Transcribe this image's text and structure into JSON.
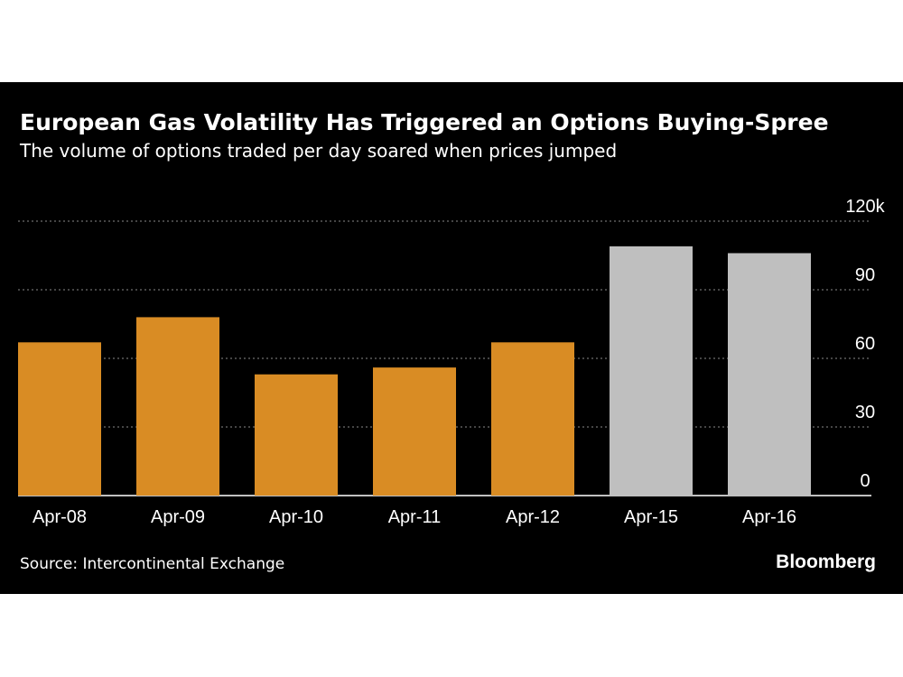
{
  "title": "European Gas Volatility Has Triggered an Options Buying-Spree",
  "subtitle": "The volume of options traded per day soared when prices jumped",
  "source": "Source: Intercontinental Exchange",
  "brand": "Bloomberg",
  "colors": {
    "background": "#000000",
    "highlight": "#d98c24",
    "muted": "#bfbfbf",
    "gridline": "#8a8a8a",
    "text": "#ffffff"
  },
  "chart_data": {
    "type": "bar",
    "title": "European Gas Volatility Has Triggered an Options Buying-Spree",
    "subtitle": "The volume of options traded per day soared when prices jumped",
    "categories": [
      "Apr-08",
      "Apr-09",
      "Apr-10",
      "Apr-11",
      "Apr-12",
      "Apr-15",
      "Apr-16"
    ],
    "values": [
      67,
      78,
      53,
      56,
      67,
      109,
      106
    ],
    "bar_colors": [
      "highlight",
      "highlight",
      "highlight",
      "highlight",
      "highlight",
      "muted",
      "muted"
    ],
    "yticks": [
      "0",
      "30",
      "60",
      "90",
      "120k"
    ],
    "ytick_values": [
      0,
      30,
      60,
      90,
      120
    ],
    "ylim": [
      0,
      120
    ],
    "y_axis_position": "right",
    "grid": true,
    "xlabel": "",
    "ylabel": ""
  }
}
